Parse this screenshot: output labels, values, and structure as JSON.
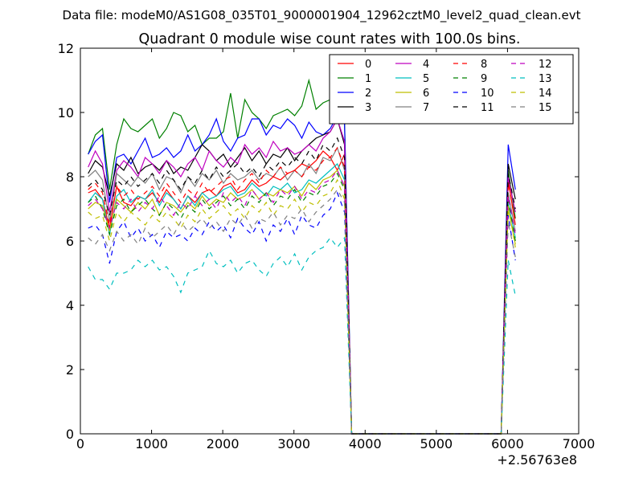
{
  "figure": {
    "suptitle": "Data file: modeM0/AS1G08_035T01_9000001904_12962cztM0_level2_quad_clean.evt"
  },
  "chart_data": {
    "type": "line",
    "title": "Quadrant 0 module wise count rates with 100.0s bins.",
    "xlabel": "",
    "ylabel": "",
    "xlim": [
      0,
      7000
    ],
    "ylim": [
      0,
      12
    ],
    "x_offset_label": "+2.56763e8",
    "x_ticks": [
      0,
      1000,
      2000,
      3000,
      4000,
      5000,
      6000,
      7000
    ],
    "y_ticks": [
      0,
      2,
      4,
      6,
      8,
      10,
      12
    ],
    "grid": false,
    "legend": {
      "placement": "top-right",
      "columns": 4
    },
    "x": [
      110,
      210,
      310,
      410,
      510,
      610,
      710,
      810,
      910,
      1010,
      1110,
      1210,
      1310,
      1410,
      1510,
      1610,
      1710,
      1810,
      1910,
      2010,
      2110,
      2210,
      2310,
      2410,
      2510,
      2610,
      2710,
      2810,
      2910,
      3010,
      3110,
      3210,
      3310,
      3410,
      3510,
      3610,
      3710,
      3810,
      3910,
      4010,
      4110,
      4210,
      4310,
      4410,
      4510,
      4610,
      4710,
      4810,
      4910,
      5010,
      5110,
      5210,
      5310,
      5410,
      5510,
      5610,
      5710,
      5810,
      5910,
      6010,
      6110
    ],
    "series": [
      {
        "name": "0",
        "color": "#ff0000",
        "dash": "solid",
        "values": [
          7.5,
          7.6,
          7.3,
          6.4,
          7.7,
          7.2,
          7.1,
          7.4,
          7.3,
          7.5,
          7.2,
          7.6,
          7.3,
          7.0,
          7.4,
          7.2,
          7.5,
          7.6,
          7.4,
          7.7,
          7.8,
          7.5,
          7.6,
          7.9,
          7.7,
          7.8,
          8.0,
          7.9,
          8.1,
          8.2,
          8.4,
          8.3,
          8.5,
          8.8,
          8.6,
          8.2,
          8.7,
          0,
          0,
          0,
          0,
          0,
          0,
          0,
          0,
          0,
          0,
          0,
          0,
          0,
          0,
          0,
          0,
          0,
          0,
          0,
          0,
          0,
          0,
          7.9,
          6.5
        ]
      },
      {
        "name": "1",
        "color": "#008000",
        "dash": "solid",
        "values": [
          8.7,
          9.3,
          9.5,
          7.6,
          9.0,
          9.8,
          9.5,
          9.4,
          9.6,
          9.8,
          9.2,
          9.5,
          10.0,
          9.9,
          9.4,
          9.6,
          9.0,
          9.2,
          9.2,
          9.4,
          10.6,
          9.2,
          10.4,
          10.0,
          9.8,
          9.5,
          9.9,
          10.0,
          10.1,
          9.9,
          10.2,
          11.0,
          10.1,
          10.3,
          10.4,
          10.6,
          9.8,
          0,
          0,
          0,
          0,
          0,
          0,
          0,
          0,
          0,
          0,
          0,
          0,
          0,
          0,
          0,
          0,
          0,
          0,
          0,
          0,
          0,
          0,
          8.2,
          6.7
        ]
      },
      {
        "name": "2",
        "color": "#0000ff",
        "dash": "solid",
        "values": [
          8.7,
          9.1,
          9.3,
          7.2,
          8.6,
          8.7,
          8.4,
          8.8,
          9.2,
          8.6,
          8.7,
          8.9,
          8.6,
          8.8,
          9.3,
          8.8,
          9.0,
          9.3,
          9.8,
          9.1,
          8.8,
          9.2,
          9.3,
          9.8,
          9.8,
          9.3,
          9.6,
          9.5,
          9.8,
          9.6,
          9.2,
          9.7,
          9.4,
          9.3,
          9.5,
          9.9,
          9.7,
          0,
          0,
          0,
          0,
          0,
          0,
          0,
          0,
          0,
          0,
          0,
          0,
          0,
          0,
          0,
          0,
          0,
          0,
          0,
          0,
          0,
          0,
          9.0,
          7.6
        ]
      },
      {
        "name": "3",
        "color": "#000000",
        "dash": "solid",
        "values": [
          8.1,
          8.5,
          8.3,
          7.4,
          8.4,
          8.2,
          8.6,
          8.1,
          8.3,
          8.4,
          8.2,
          8.5,
          8.1,
          8.3,
          8.2,
          8.6,
          9.0,
          8.8,
          8.5,
          8.7,
          8.3,
          8.6,
          8.9,
          8.5,
          8.8,
          8.4,
          8.7,
          8.6,
          8.9,
          8.5,
          8.8,
          9.0,
          9.2,
          9.3,
          9.4,
          9.8,
          9.0,
          0,
          0,
          0,
          0,
          0,
          0,
          0,
          0,
          0,
          0,
          0,
          0,
          0,
          0,
          0,
          0,
          0,
          0,
          0,
          0,
          0,
          0,
          8.4,
          7.3
        ]
      },
      {
        "name": "4",
        "color": "#bf00bf",
        "dash": "solid",
        "values": [
          8.3,
          8.8,
          8.4,
          6.9,
          8.2,
          8.5,
          8.3,
          8.0,
          8.6,
          8.4,
          8.1,
          8.5,
          8.3,
          8.0,
          8.4,
          8.6,
          8.2,
          8.8,
          8.5,
          8.3,
          8.6,
          8.4,
          9.0,
          8.7,
          8.9,
          8.6,
          9.1,
          8.8,
          8.9,
          8.7,
          8.8,
          9.0,
          8.8,
          9.2,
          9.4,
          9.8,
          9.1,
          0,
          0,
          0,
          0,
          0,
          0,
          0,
          0,
          0,
          0,
          0,
          0,
          0,
          0,
          0,
          0,
          0,
          0,
          0,
          0,
          0,
          0,
          8.0,
          6.9
        ]
      },
      {
        "name": "5",
        "color": "#00bfbf",
        "dash": "solid",
        "values": [
          7.2,
          7.5,
          7.3,
          6.2,
          7.4,
          7.6,
          7.2,
          7.4,
          7.3,
          7.6,
          7.1,
          7.5,
          7.3,
          7.0,
          7.4,
          7.1,
          7.5,
          7.3,
          7.4,
          7.6,
          7.7,
          7.4,
          7.5,
          7.8,
          7.6,
          7.4,
          7.7,
          7.6,
          7.8,
          7.5,
          7.6,
          7.9,
          7.8,
          8.0,
          8.2,
          8.4,
          7.9,
          0,
          0,
          0,
          0,
          0,
          0,
          0,
          0,
          0,
          0,
          0,
          0,
          0,
          0,
          0,
          0,
          0,
          0,
          0,
          0,
          0,
          0,
          7.2,
          6.1
        ]
      },
      {
        "name": "6",
        "color": "#bfbf00",
        "dash": "solid",
        "values": [
          7.0,
          7.2,
          7.1,
          6.3,
          7.3,
          7.1,
          6.9,
          7.2,
          7.0,
          7.3,
          6.8,
          7.2,
          7.1,
          6.9,
          7.2,
          7.0,
          7.4,
          7.1,
          7.3,
          7.2,
          7.5,
          7.3,
          7.4,
          7.6,
          7.3,
          7.5,
          7.4,
          7.6,
          7.5,
          7.7,
          7.4,
          7.8,
          7.6,
          7.9,
          8.0,
          8.2,
          7.7,
          0,
          0,
          0,
          0,
          0,
          0,
          0,
          0,
          0,
          0,
          0,
          0,
          0,
          0,
          0,
          0,
          0,
          0,
          0,
          0,
          0,
          0,
          7.0,
          5.9
        ]
      },
      {
        "name": "7",
        "color": "#808080",
        "dash": "solid",
        "values": [
          8.0,
          8.2,
          7.9,
          6.6,
          8.1,
          7.9,
          7.7,
          8.0,
          7.8,
          8.1,
          7.6,
          8.0,
          7.9,
          7.5,
          8.0,
          7.7,
          8.1,
          7.9,
          8.2,
          7.8,
          8.1,
          7.9,
          8.0,
          8.2,
          7.9,
          8.1,
          8.0,
          8.3,
          7.9,
          8.2,
          8.0,
          8.4,
          8.1,
          8.6,
          8.5,
          8.9,
          8.2,
          0,
          0,
          0,
          0,
          0,
          0,
          0,
          0,
          0,
          0,
          0,
          0,
          0,
          0,
          0,
          0,
          0,
          0,
          0,
          0,
          0,
          0,
          7.5,
          6.3
        ]
      },
      {
        "name": "8",
        "color": "#ff0000",
        "dash": "dashed",
        "values": [
          7.6,
          7.8,
          7.5,
          6.5,
          7.7,
          7.4,
          7.6,
          7.3,
          7.5,
          7.7,
          7.4,
          7.8,
          7.5,
          7.2,
          7.6,
          7.4,
          7.8,
          7.5,
          7.7,
          7.9,
          8.0,
          7.6,
          7.9,
          8.1,
          7.8,
          8.2,
          8.0,
          8.3,
          8.1,
          8.2,
          8.0,
          8.3,
          8.2,
          8.5,
          8.6,
          8.9,
          8.3,
          0,
          0,
          0,
          0,
          0,
          0,
          0,
          0,
          0,
          0,
          0,
          0,
          0,
          0,
          0,
          0,
          0,
          0,
          0,
          0,
          0,
          0,
          7.8,
          6.6
        ]
      },
      {
        "name": "9",
        "color": "#008000",
        "dash": "dashed",
        "values": [
          7.2,
          7.4,
          7.0,
          6.2,
          7.1,
          7.3,
          6.9,
          7.1,
          7.3,
          7.0,
          6.8,
          7.2,
          7.0,
          6.7,
          7.1,
          6.9,
          7.3,
          7.0,
          7.2,
          7.4,
          7.1,
          7.3,
          7.0,
          7.4,
          7.2,
          7.5,
          7.1,
          7.4,
          7.3,
          7.6,
          7.2,
          7.5,
          7.4,
          7.7,
          7.8,
          8.1,
          7.6,
          0,
          0,
          0,
          0,
          0,
          0,
          0,
          0,
          0,
          0,
          0,
          0,
          0,
          0,
          0,
          0,
          0,
          0,
          0,
          0,
          0,
          0,
          7.3,
          6.0
        ]
      },
      {
        "name": "10",
        "color": "#0000ff",
        "dash": "dashed",
        "values": [
          6.4,
          6.5,
          6.2,
          5.3,
          6.3,
          6.6,
          6.1,
          6.4,
          6.0,
          6.2,
          5.8,
          6.3,
          6.1,
          6.2,
          6.0,
          6.4,
          6.2,
          6.6,
          6.3,
          6.5,
          6.1,
          6.7,
          6.4,
          6.2,
          6.6,
          6.0,
          6.5,
          6.3,
          6.7,
          6.2,
          6.8,
          6.5,
          6.4,
          6.8,
          7.0,
          7.5,
          6.9,
          0,
          0,
          0,
          0,
          0,
          0,
          0,
          0,
          0,
          0,
          0,
          0,
          0,
          0,
          0,
          0,
          0,
          0,
          0,
          0,
          0,
          0,
          6.8,
          5.4
        ]
      },
      {
        "name": "11",
        "color": "#000000",
        "dash": "dashed",
        "values": [
          7.7,
          7.9,
          7.6,
          6.8,
          7.9,
          7.7,
          8.0,
          7.7,
          7.9,
          8.1,
          7.8,
          8.2,
          7.9,
          7.6,
          8.0,
          7.8,
          8.2,
          7.9,
          8.3,
          8.0,
          8.2,
          8.4,
          8.1,
          8.3,
          8.0,
          8.4,
          8.2,
          8.5,
          8.3,
          8.6,
          8.4,
          8.8,
          8.5,
          9.0,
          8.8,
          9.2,
          8.6,
          0,
          0,
          0,
          0,
          0,
          0,
          0,
          0,
          0,
          0,
          0,
          0,
          0,
          0,
          0,
          0,
          0,
          0,
          0,
          0,
          0,
          0,
          8.1,
          7.0
        ]
      },
      {
        "name": "12",
        "color": "#bf00bf",
        "dash": "dashed",
        "values": [
          7.1,
          7.3,
          7.0,
          6.4,
          7.2,
          7.0,
          7.3,
          6.9,
          7.2,
          7.0,
          7.4,
          7.1,
          6.8,
          7.2,
          7.0,
          7.4,
          7.1,
          7.3,
          7.0,
          7.5,
          7.2,
          7.4,
          7.1,
          7.6,
          7.3,
          7.5,
          7.2,
          7.6,
          7.4,
          7.7,
          7.3,
          7.6,
          7.5,
          7.8,
          7.9,
          8.2,
          7.7,
          0,
          0,
          0,
          0,
          0,
          0,
          0,
          0,
          0,
          0,
          0,
          0,
          0,
          0,
          0,
          0,
          0,
          0,
          0,
          0,
          0,
          0,
          7.4,
          6.2
        ]
      },
      {
        "name": "13",
        "color": "#00bfbf",
        "dash": "dashed",
        "values": [
          5.2,
          4.8,
          4.8,
          4.5,
          5.0,
          5.0,
          5.1,
          5.4,
          5.2,
          5.4,
          5.1,
          5.2,
          4.9,
          4.4,
          5.0,
          5.1,
          5.2,
          5.7,
          5.3,
          5.2,
          5.4,
          5.0,
          5.3,
          5.4,
          5.1,
          4.9,
          5.3,
          5.5,
          5.2,
          5.6,
          5.1,
          5.5,
          5.7,
          5.8,
          6.1,
          5.8,
          6.1,
          0,
          0,
          0,
          0,
          0,
          0,
          0,
          0,
          0,
          0,
          0,
          0,
          0,
          0,
          0,
          0,
          0,
          0,
          0,
          0,
          0,
          0,
          5.4,
          4.3
        ]
      },
      {
        "name": "14",
        "color": "#bfbf00",
        "dash": "dashed",
        "values": [
          6.9,
          6.7,
          6.8,
          6.0,
          6.9,
          6.6,
          6.9,
          6.7,
          6.5,
          6.8,
          6.6,
          6.9,
          6.7,
          6.4,
          6.8,
          6.6,
          7.0,
          6.7,
          6.9,
          7.1,
          6.8,
          7.0,
          6.7,
          7.1,
          6.9,
          7.2,
          6.8,
          7.1,
          7.0,
          7.3,
          6.9,
          7.2,
          7.1,
          7.4,
          7.5,
          7.9,
          7.3,
          0,
          0,
          0,
          0,
          0,
          0,
          0,
          0,
          0,
          0,
          0,
          0,
          0,
          0,
          0,
          0,
          0,
          0,
          0,
          0,
          0,
          0,
          7.1,
          5.8
        ]
      },
      {
        "name": "15",
        "color": "#808080",
        "dash": "dashed",
        "values": [
          6.1,
          5.9,
          6.2,
          5.7,
          6.3,
          6.0,
          6.2,
          5.9,
          6.4,
          6.1,
          6.3,
          6.5,
          6.2,
          6.6,
          6.3,
          6.5,
          6.7,
          6.4,
          6.6,
          6.3,
          6.7,
          6.5,
          6.8,
          6.4,
          6.7,
          6.6,
          6.9,
          6.5,
          6.8,
          6.7,
          7.0,
          6.6,
          6.9,
          7.1,
          7.3,
          7.6,
          7.2,
          0,
          0,
          0,
          0,
          0,
          0,
          0,
          0,
          0,
          0,
          0,
          0,
          0,
          0,
          0,
          0,
          0,
          0,
          0,
          0,
          0,
          0,
          6.6,
          5.5
        ]
      }
    ]
  }
}
